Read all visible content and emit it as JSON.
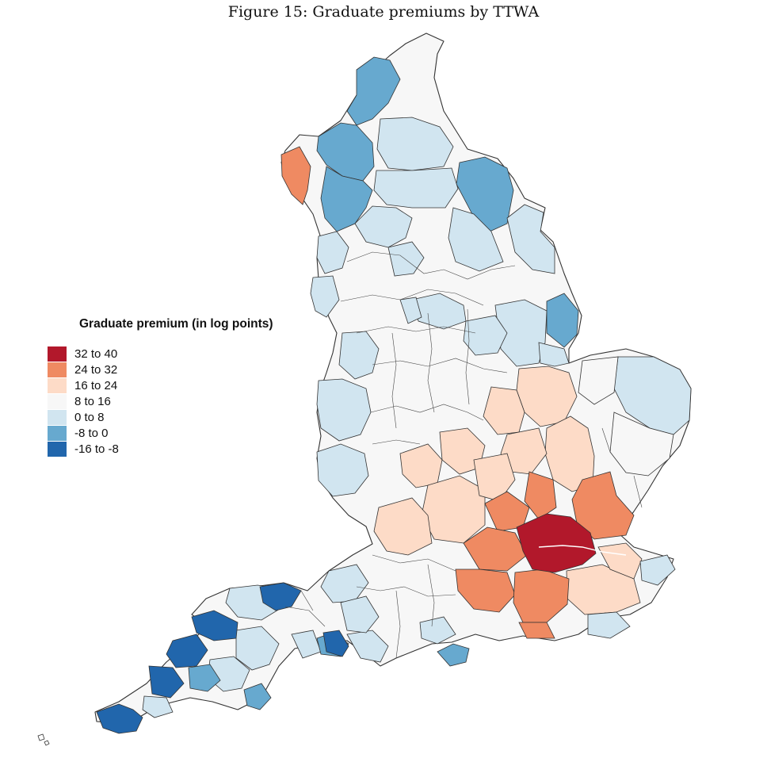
{
  "title": "Figure 15: Graduate premiums by TTWA",
  "legend": {
    "title": "Graduate premium (in log points)",
    "items": [
      {
        "label": "32 to 40",
        "color": "#b2182b"
      },
      {
        "label": "24 to 32",
        "color": "#ef8a62"
      },
      {
        "label": "16 to 24",
        "color": "#fddbc7"
      },
      {
        "label": "8 to 16",
        "color": "#f7f7f7"
      },
      {
        "label": "0 to 8",
        "color": "#d1e5f0"
      },
      {
        "label": "-8 to 0",
        "color": "#67a9cf"
      },
      {
        "label": "-16 to -8",
        "color": "#2166ac"
      }
    ]
  }
}
